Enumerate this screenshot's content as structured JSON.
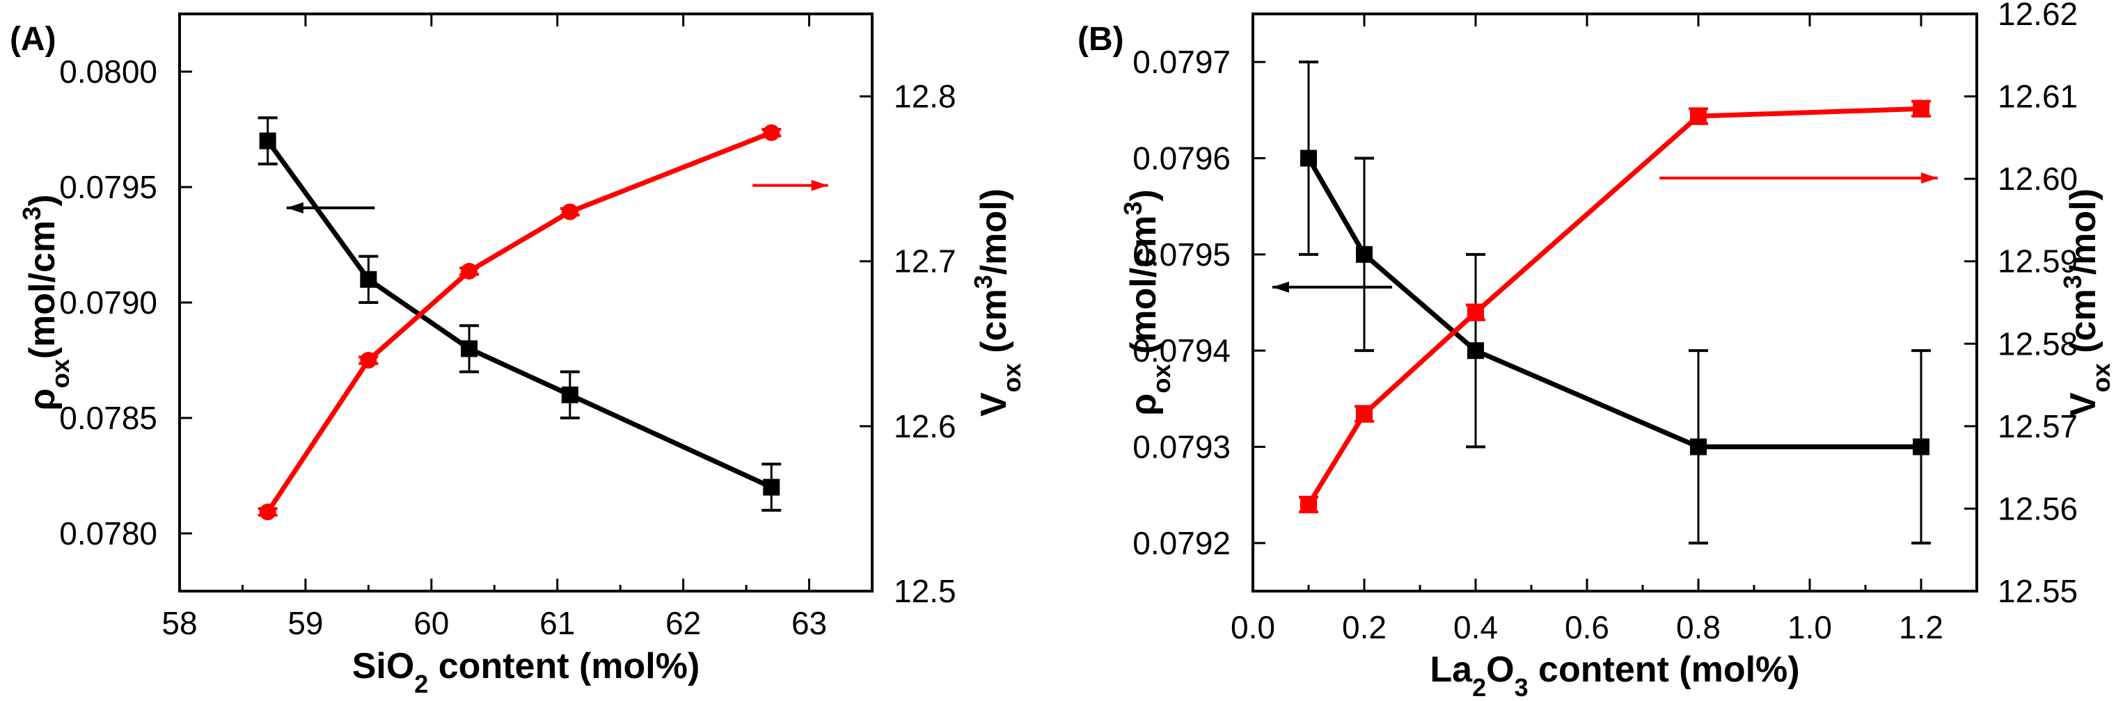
{
  "chart_data": [
    {
      "type": "line",
      "panel_label": "(A)",
      "xlabel": {
        "pre": "SiO",
        "sub": "2",
        "post": " content (mol%)"
      },
      "ylabel_left": {
        "sym": "ρ",
        "sub": "ox",
        "post": "(mol/cm",
        "sup": "3",
        "end": ")"
      },
      "ylabel_right": {
        "sym": "V",
        "sub": "ox",
        "post": " (cm",
        "sup": "3",
        "end": "/mol)"
      },
      "xlim": [
        58,
        63.5
      ],
      "ylim_left": [
        0.07775,
        0.08025
      ],
      "ylim_right": [
        12.5,
        12.85
      ],
      "xticks": [
        58,
        59,
        60,
        61,
        62,
        63
      ],
      "xtick_labels": [
        "58",
        "59",
        "60",
        "61",
        "62",
        "63"
      ],
      "yticks_left": [
        0.078,
        0.0785,
        0.079,
        0.0795,
        0.08
      ],
      "ytick_labels_left": [
        "0.0780",
        "0.0785",
        "0.0790",
        "0.0795",
        "0.0800"
      ],
      "yticks_right": [
        12.5,
        12.6,
        12.7,
        12.8
      ],
      "ytick_labels_right": [
        "12.5",
        "12.6",
        "12.7",
        "12.8"
      ],
      "series": [
        {
          "name": "rho_ox",
          "axis": "left",
          "color": "#000000",
          "marker": "square",
          "x": [
            58.7,
            59.5,
            60.3,
            61.1,
            62.7
          ],
          "y": [
            0.0797,
            0.0791,
            0.0788,
            0.0786,
            0.0782
          ],
          "err": [
            0.0001,
            0.0001,
            0.0001,
            0.0001,
            0.0001
          ]
        },
        {
          "name": "V_ox",
          "axis": "right",
          "color": "#ff0000",
          "marker": "circle",
          "x": [
            58.7,
            59.5,
            60.3,
            61.1,
            62.7
          ],
          "y": [
            12.548,
            12.64,
            12.694,
            12.73,
            12.778
          ],
          "err": [
            0.002,
            0.002,
            0.002,
            0.002,
            0.002
          ]
        }
      ],
      "annotations": [
        {
          "type": "arrow",
          "direction": "left",
          "color": "#000000",
          "x_from": 59.55,
          "x_to": 58.85,
          "y_left": 0.07941
        },
        {
          "type": "arrow",
          "direction": "right",
          "color": "#ff0000",
          "x_from": 62.55,
          "x_to": 63.15,
          "y_right": 12.746
        }
      ]
    },
    {
      "type": "line",
      "panel_label": "(B)",
      "xlabel": {
        "pre": "La",
        "sub": "2",
        "post": "O",
        "sub2": "3",
        "end": " content (mol%)"
      },
      "ylabel_left": {
        "sym": "ρ",
        "sub": "ox",
        "post": " (mol/cm",
        "sup": "3",
        "end": ")"
      },
      "ylabel_right": {
        "sym": "V",
        "sub": "ox",
        "post": " (cm",
        "sup": "3",
        "end": "/mol)"
      },
      "xlim": [
        0,
        1.3
      ],
      "ylim_left": [
        0.07915,
        0.07975
      ],
      "ylim_right": [
        12.55,
        12.62
      ],
      "xticks": [
        0,
        0.2,
        0.4,
        0.6,
        0.8,
        1.0,
        1.2
      ],
      "xtick_labels": [
        "0.0",
        "0.2",
        "0.4",
        "0.6",
        "0.8",
        "1.0",
        "1.2"
      ],
      "yticks_left": [
        0.0792,
        0.0793,
        0.0794,
        0.0795,
        0.0796,
        0.0797
      ],
      "ytick_labels_left": [
        "0.0792",
        "0.0793",
        "0.0794",
        "0.0795",
        "0.0796",
        "0.0797"
      ],
      "yticks_right": [
        12.55,
        12.56,
        12.57,
        12.58,
        12.59,
        12.6,
        12.61,
        12.62
      ],
      "ytick_labels_right": [
        "12.55",
        "12.56",
        "12.57",
        "12.58",
        "12.59",
        "12.60",
        "12.61",
        "12.62"
      ],
      "series": [
        {
          "name": "rho_ox",
          "axis": "left",
          "color": "#000000",
          "marker": "square",
          "x": [
            0.1,
            0.2,
            0.4,
            0.8,
            1.2
          ],
          "y": [
            0.0796,
            0.0795,
            0.0794,
            0.0793,
            0.0793
          ],
          "err": [
            0.0001,
            0.0001,
            0.0001,
            0.0001,
            0.0001
          ]
        },
        {
          "name": "V_ox",
          "axis": "right",
          "color": "#ff0000",
          "marker": "square",
          "x": [
            0.1,
            0.2,
            0.4,
            0.8,
            1.2
          ],
          "y": [
            12.5605,
            12.5715,
            12.5838,
            12.6076,
            12.6085
          ],
          "err": [
            0.0009,
            0.0009,
            0.0009,
            0.0009,
            0.0009
          ]
        }
      ],
      "annotations": [
        {
          "type": "arrow",
          "direction": "left",
          "color": "#000000",
          "x_from": 0.25,
          "x_to": 0.035,
          "y_left": 0.079466
        },
        {
          "type": "arrow",
          "direction": "right",
          "color": "#ff0000",
          "x_from": 0.73,
          "x_to": 1.23,
          "y_right": 12.6001
        }
      ]
    }
  ]
}
